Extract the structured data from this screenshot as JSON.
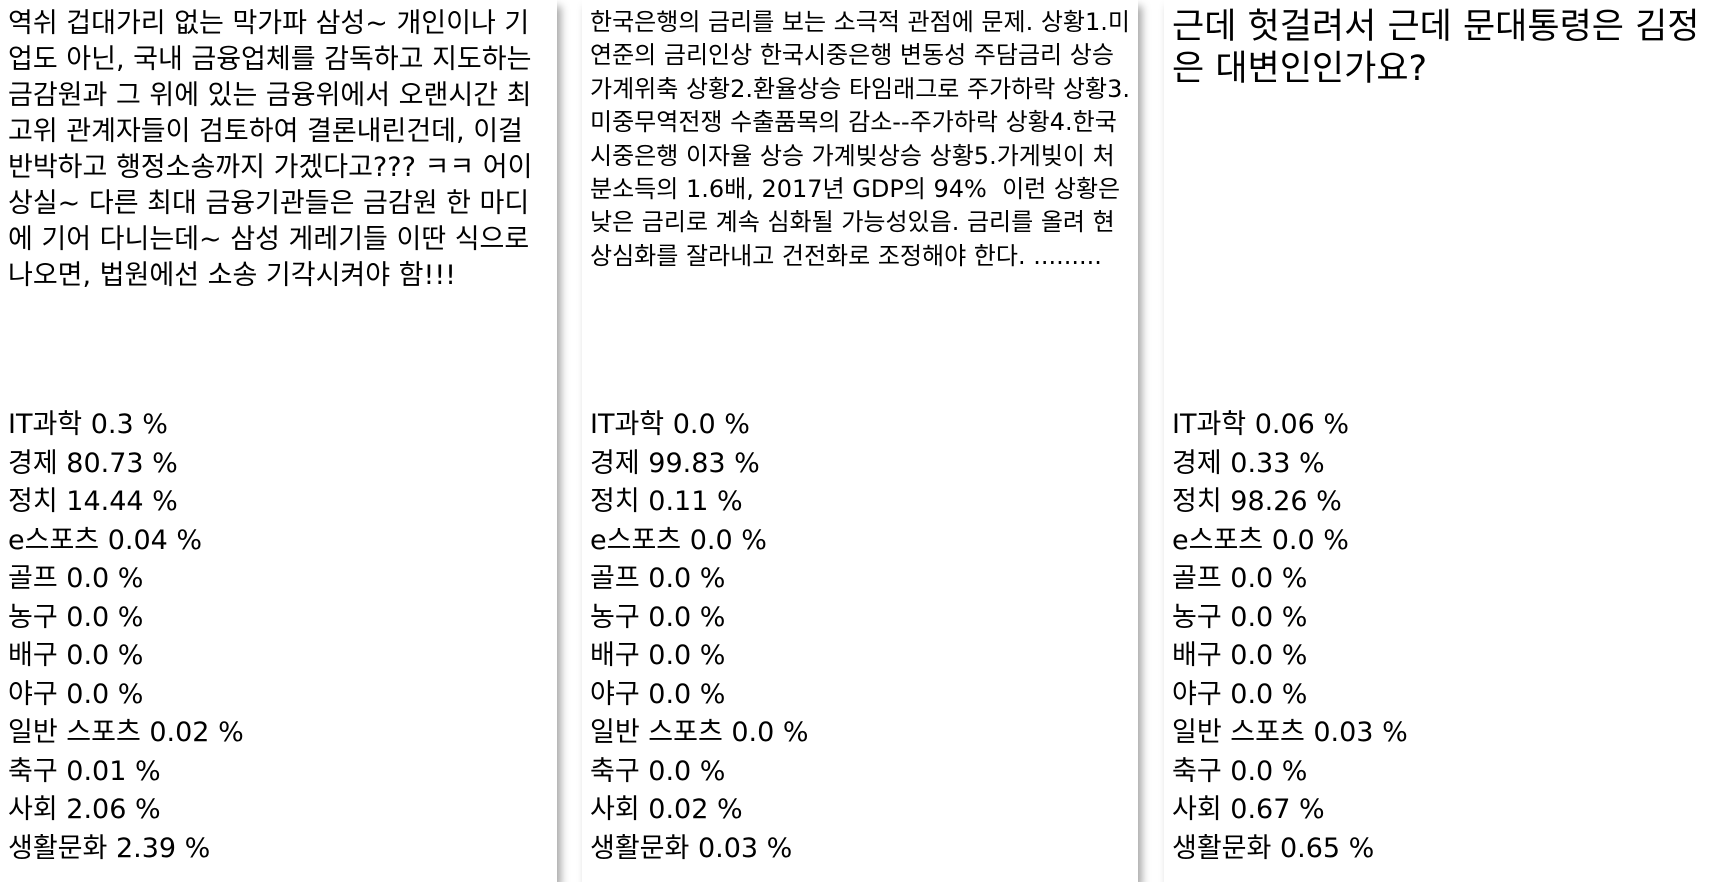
{
  "cards": [
    {
      "comment": "역쉬 겁대가리 없는 막가파 삼성~ 개인이나 기업도 아닌, 국내 금융업체를 감독하고 지도하는 금감원과 그 위에 있는 금융위에서 오랜시간 최고위 관계자들이 검토하여 결론내린건데, 이걸 반박하고 행정소송까지 가겠다고??? ㅋㅋ 어이상실~ 다른 최대 금융기관들은 금감원 한 마디에 기어 다니는데~ 삼성 게레기들 이딴 식으로 나오면, 법원에선 소송 기각시켜야 함!!!",
      "scores": [
        "IT과학 0.3 %",
        "경제 80.73 %",
        "정치 14.44 %",
        "e스포츠 0.04 %",
        "골프 0.0 %",
        "농구 0.0 %",
        "배구 0.0 %",
        "야구 0.0 %",
        "일반 스포츠 0.02 %",
        "축구 0.01 %",
        "사회 2.06 %",
        "생활문화 2.39 %"
      ]
    },
    {
      "comment": "한국은행의 금리를 보는 소극적 관점에 문제. 상황1.미연준의 금리인상 한국시중은행 변동성 주담금리 상승 가계위축 상황2.환율상승 타임래그로 주가하락 상황3.미중무역전쟁 수출품목의 감소--주가하락 상황4.한국시중은행 이자율 상승 가계빚상승 상황5.가게빚이 처분소득의 1.6배, 2017년 GDP의 94%  이런 상황은 낮은 금리로 계속 심화될 가능성있음. 금리를 올려 현상심화를 잘라내고 건전화로 조정해야 한다. .........",
      "scores": [
        "IT과학 0.0 %",
        "경제 99.83 %",
        "정치 0.11 %",
        "e스포츠 0.0 %",
        "골프 0.0 %",
        "농구 0.0 %",
        "배구 0.0 %",
        "야구 0.0 %",
        "일반 스포츠 0.0 %",
        "축구 0.0 %",
        "사회 0.02 %",
        "생활문화 0.03 %"
      ]
    },
    {
      "comment": "근데 헛걸려서 근데 문대통령은 김정은 대변인인가요?",
      "scores": [
        "IT과학 0.06 %",
        "경제 0.33 %",
        "정치 98.26 %",
        "e스포츠 0.0 %",
        "골프 0.0 %",
        "농구 0.0 %",
        "배구 0.0 %",
        "야구 0.0 %",
        "일반 스포츠 0.03 %",
        "축구 0.0 %",
        "사회 0.67 %",
        "생활문화 0.65 %"
      ]
    }
  ]
}
